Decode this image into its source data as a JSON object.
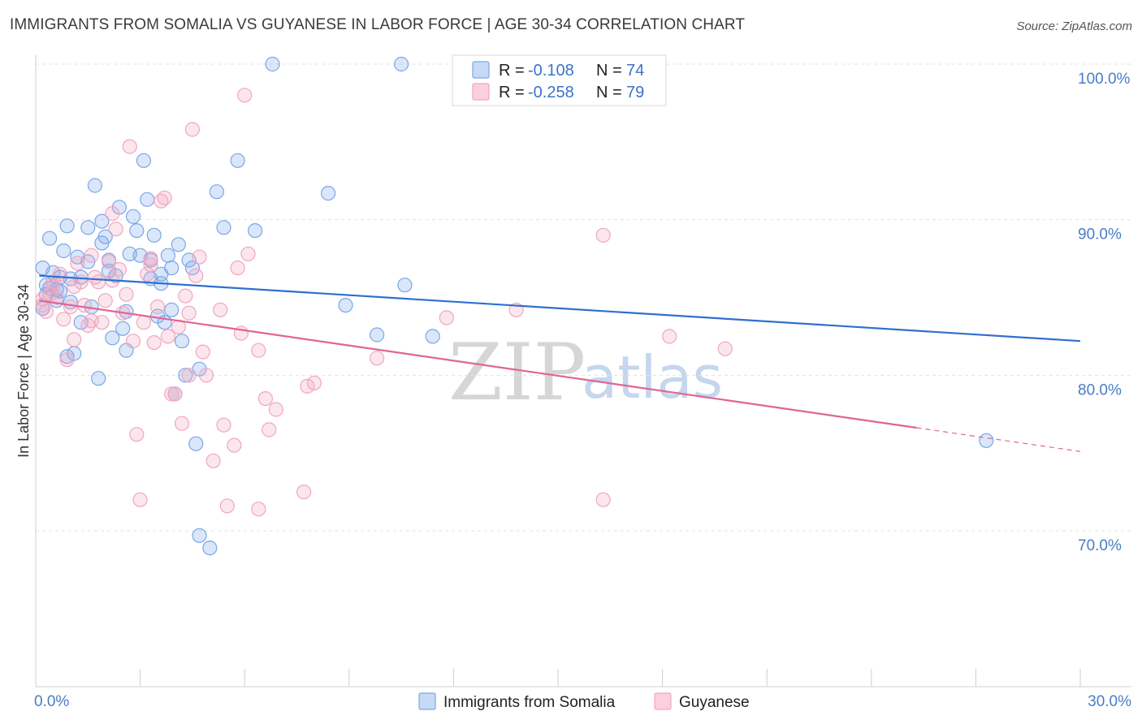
{
  "chart_data": {
    "type": "scatter",
    "title": "IMMIGRANTS FROM SOMALIA VS GUYANESE IN LABOR FORCE | AGE 30-34 CORRELATION CHART",
    "source": "Source: ZipAtlas.com",
    "xlabel": "",
    "ylabel": "In Labor Force | Age 30-34",
    "xlim": [
      0,
      30
    ],
    "ylim": [
      60.5,
      101.5
    ],
    "x_tick_labels": {
      "left": "0.0%",
      "right": "30.0%"
    },
    "y_ticks": [
      {
        "value": 70,
        "label": "70.0%"
      },
      {
        "value": 80,
        "label": "80.0%"
      },
      {
        "value": 90,
        "label": "90.0%"
      },
      {
        "value": 100,
        "label": "100.0%"
      }
    ],
    "watermark": {
      "zip": "ZIP",
      "atlas": "atlas"
    },
    "legend": {
      "r_label": "R =",
      "n_label": "N =",
      "entries": [
        {
          "r": "-0.108",
          "n": "74"
        },
        {
          "r": "-0.258",
          "n": "79"
        }
      ]
    },
    "series": [
      {
        "name": "Immigrants from Somalia",
        "color": "#7aa7e8",
        "line_color": "#2f6fce",
        "trend": {
          "x0": 0.1,
          "y0": 86.4,
          "x1": 30.0,
          "y1": 82.2,
          "solid_until": 30.0
        },
        "points": [
          [
            0.2,
            86.9
          ],
          [
            0.3,
            85.2
          ],
          [
            0.4,
            85.6
          ],
          [
            0.5,
            86.6
          ],
          [
            0.4,
            88.8
          ],
          [
            0.6,
            84.8
          ],
          [
            0.7,
            85.4
          ],
          [
            0.8,
            88.0
          ],
          [
            0.9,
            89.6
          ],
          [
            1.0,
            86.2
          ],
          [
            1.1,
            81.4
          ],
          [
            1.2,
            87.6
          ],
          [
            1.3,
            86.3
          ],
          [
            1.3,
            83.4
          ],
          [
            1.5,
            89.5
          ],
          [
            1.5,
            87.3
          ],
          [
            1.6,
            84.4
          ],
          [
            1.7,
            92.2
          ],
          [
            1.8,
            79.8
          ],
          [
            1.9,
            89.9
          ],
          [
            2.0,
            88.9
          ],
          [
            2.1,
            87.4
          ],
          [
            2.2,
            82.4
          ],
          [
            2.3,
            86.4
          ],
          [
            2.4,
            90.8
          ],
          [
            2.5,
            83.0
          ],
          [
            2.6,
            81.6
          ],
          [
            2.6,
            84.1
          ],
          [
            2.7,
            87.8
          ],
          [
            2.8,
            90.2
          ],
          [
            2.9,
            89.3
          ],
          [
            3.0,
            87.7
          ],
          [
            3.1,
            93.8
          ],
          [
            3.2,
            91.3
          ],
          [
            3.3,
            87.4
          ],
          [
            3.3,
            86.2
          ],
          [
            3.4,
            89.0
          ],
          [
            3.5,
            83.8
          ],
          [
            3.6,
            86.5
          ],
          [
            3.7,
            83.4
          ],
          [
            3.8,
            87.7
          ],
          [
            3.9,
            86.9
          ],
          [
            3.9,
            84.2
          ],
          [
            4.0,
            78.8
          ],
          [
            4.1,
            88.4
          ],
          [
            4.2,
            82.2
          ],
          [
            4.3,
            80.0
          ],
          [
            4.4,
            87.4
          ],
          [
            4.5,
            86.9
          ],
          [
            4.6,
            75.6
          ],
          [
            4.7,
            80.4
          ],
          [
            4.7,
            69.7
          ],
          [
            5.0,
            68.9
          ],
          [
            5.2,
            91.8
          ],
          [
            5.4,
            89.5
          ],
          [
            5.8,
            93.8
          ],
          [
            6.3,
            89.3
          ],
          [
            6.8,
            100.0
          ],
          [
            8.4,
            91.7
          ],
          [
            8.9,
            84.5
          ],
          [
            9.8,
            82.6
          ],
          [
            10.5,
            100.0
          ],
          [
            10.6,
            85.8
          ],
          [
            11.4,
            82.5
          ],
          [
            27.3,
            75.8
          ],
          [
            0.2,
            84.3
          ],
          [
            0.9,
            81.2
          ],
          [
            1.0,
            84.7
          ],
          [
            0.6,
            85.5
          ],
          [
            2.1,
            86.7
          ],
          [
            3.6,
            85.9
          ],
          [
            1.9,
            88.5
          ],
          [
            0.3,
            85.8
          ],
          [
            0.7,
            86.3
          ]
        ]
      },
      {
        "name": "Guyanese",
        "color": "#f2a6bf",
        "line_color": "#e06592",
        "trend": {
          "x0": 0.1,
          "y0": 84.8,
          "x1": 30.0,
          "y1": 75.1,
          "solid_until": 25.3
        },
        "points": [
          [
            0.2,
            84.5
          ],
          [
            0.3,
            84.1
          ],
          [
            0.4,
            85.2
          ],
          [
            0.5,
            86.0
          ],
          [
            0.6,
            85.0
          ],
          [
            0.7,
            86.5
          ],
          [
            0.8,
            83.6
          ],
          [
            0.9,
            81.0
          ],
          [
            1.0,
            84.4
          ],
          [
            1.1,
            85.7
          ],
          [
            1.2,
            87.2
          ],
          [
            1.3,
            86.0
          ],
          [
            1.4,
            84.5
          ],
          [
            1.5,
            83.2
          ],
          [
            1.6,
            83.5
          ],
          [
            1.7,
            86.3
          ],
          [
            1.8,
            86.0
          ],
          [
            1.9,
            83.4
          ],
          [
            2.0,
            84.8
          ],
          [
            2.1,
            87.3
          ],
          [
            2.2,
            90.4
          ],
          [
            2.3,
            89.4
          ],
          [
            2.4,
            86.8
          ],
          [
            2.5,
            84.0
          ],
          [
            2.6,
            85.2
          ],
          [
            2.7,
            94.7
          ],
          [
            2.8,
            82.2
          ],
          [
            2.9,
            76.2
          ],
          [
            3.0,
            72.0
          ],
          [
            3.1,
            83.4
          ],
          [
            3.2,
            86.5
          ],
          [
            3.3,
            87.5
          ],
          [
            3.4,
            82.1
          ],
          [
            3.5,
            84.4
          ],
          [
            3.6,
            91.2
          ],
          [
            3.7,
            91.4
          ],
          [
            3.8,
            82.5
          ],
          [
            3.9,
            78.8
          ],
          [
            4.0,
            78.8
          ],
          [
            4.1,
            83.1
          ],
          [
            4.2,
            76.9
          ],
          [
            4.3,
            85.1
          ],
          [
            4.4,
            84.0
          ],
          [
            4.5,
            95.8
          ],
          [
            4.6,
            86.4
          ],
          [
            4.7,
            87.6
          ],
          [
            4.8,
            81.5
          ],
          [
            4.9,
            80.0
          ],
          [
            5.1,
            74.5
          ],
          [
            5.3,
            84.2
          ],
          [
            5.4,
            76.8
          ],
          [
            5.5,
            71.6
          ],
          [
            5.7,
            75.5
          ],
          [
            5.8,
            86.9
          ],
          [
            5.9,
            82.7
          ],
          [
            6.0,
            98.0
          ],
          [
            6.1,
            87.8
          ],
          [
            6.4,
            71.4
          ],
          [
            6.4,
            81.6
          ],
          [
            6.6,
            78.5
          ],
          [
            6.7,
            76.5
          ],
          [
            6.9,
            77.8
          ],
          [
            7.7,
            72.5
          ],
          [
            7.8,
            79.3
          ],
          [
            8.0,
            79.5
          ],
          [
            9.8,
            81.1
          ],
          [
            11.8,
            83.7
          ],
          [
            13.8,
            84.2
          ],
          [
            16.3,
            89.0
          ],
          [
            16.3,
            72.0
          ],
          [
            18.2,
            82.5
          ],
          [
            19.8,
            81.7
          ],
          [
            0.2,
            84.9
          ],
          [
            0.5,
            85.7
          ],
          [
            1.1,
            82.3
          ],
          [
            2.2,
            86.1
          ],
          [
            3.3,
            87.1
          ],
          [
            4.4,
            80.0
          ],
          [
            1.6,
            87.7
          ]
        ]
      }
    ]
  }
}
